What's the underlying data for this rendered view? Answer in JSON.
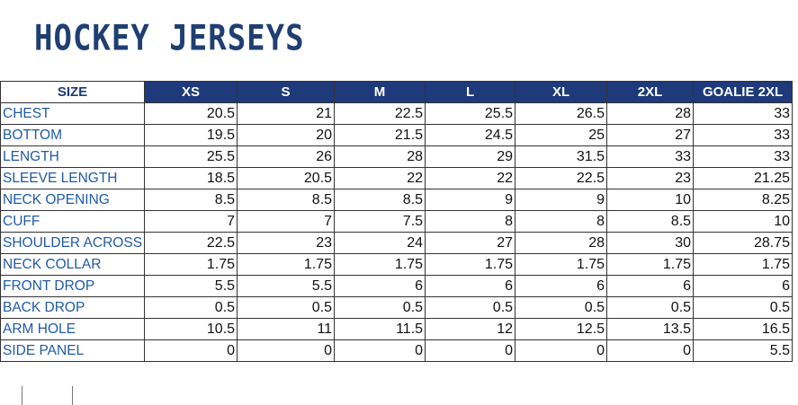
{
  "header": {
    "title": "HOCKEY JERSEYS"
  },
  "table": {
    "columns": [
      "SIZE",
      "XS",
      "S",
      "M",
      "L",
      "XL",
      "2XL",
      "GOALIE 2XL"
    ],
    "rows": [
      [
        "CHEST",
        "20.5",
        "21",
        "22.5",
        "25.5",
        "26.5",
        "28",
        "33"
      ],
      [
        "BOTTOM",
        "19.5",
        "20",
        "21.5",
        "24.5",
        "25",
        "27",
        "33"
      ],
      [
        "LENGTH",
        "25.5",
        "26",
        "28",
        "29",
        "31.5",
        "33",
        "33"
      ],
      [
        "SLEEVE LENGTH",
        "18.5",
        "20.5",
        "22",
        "22",
        "22.5",
        "23",
        "21.25"
      ],
      [
        "NECK OPENING",
        "8.5",
        "8.5",
        "8.5",
        "9",
        "9",
        "10",
        "8.25"
      ],
      [
        "CUFF",
        "7",
        "7",
        "7.5",
        "8",
        "8",
        "8.5",
        "10"
      ],
      [
        "SHOULDER ACROSS",
        "22.5",
        "23",
        "24",
        "27",
        "28",
        "30",
        "28.75"
      ],
      [
        "NECK COLLAR",
        "1.75",
        "1.75",
        "1.75",
        "1.75",
        "1.75",
        "1.75",
        "1.75"
      ],
      [
        "FRONT DROP",
        "5.5",
        "5.5",
        "6",
        "6",
        "6",
        "6",
        "6"
      ],
      [
        "BACK DROP",
        "0.5",
        "0.5",
        "0.5",
        "0.5",
        "0.5",
        "0.5",
        "0.5"
      ],
      [
        "ARM HOLE",
        "10.5",
        "11",
        "11.5",
        "12",
        "12.5",
        "13.5",
        "16.5"
      ],
      [
        "SIDE PANEL",
        "0",
        "0",
        "0",
        "0",
        "0",
        "0",
        "5.5"
      ]
    ]
  }
}
